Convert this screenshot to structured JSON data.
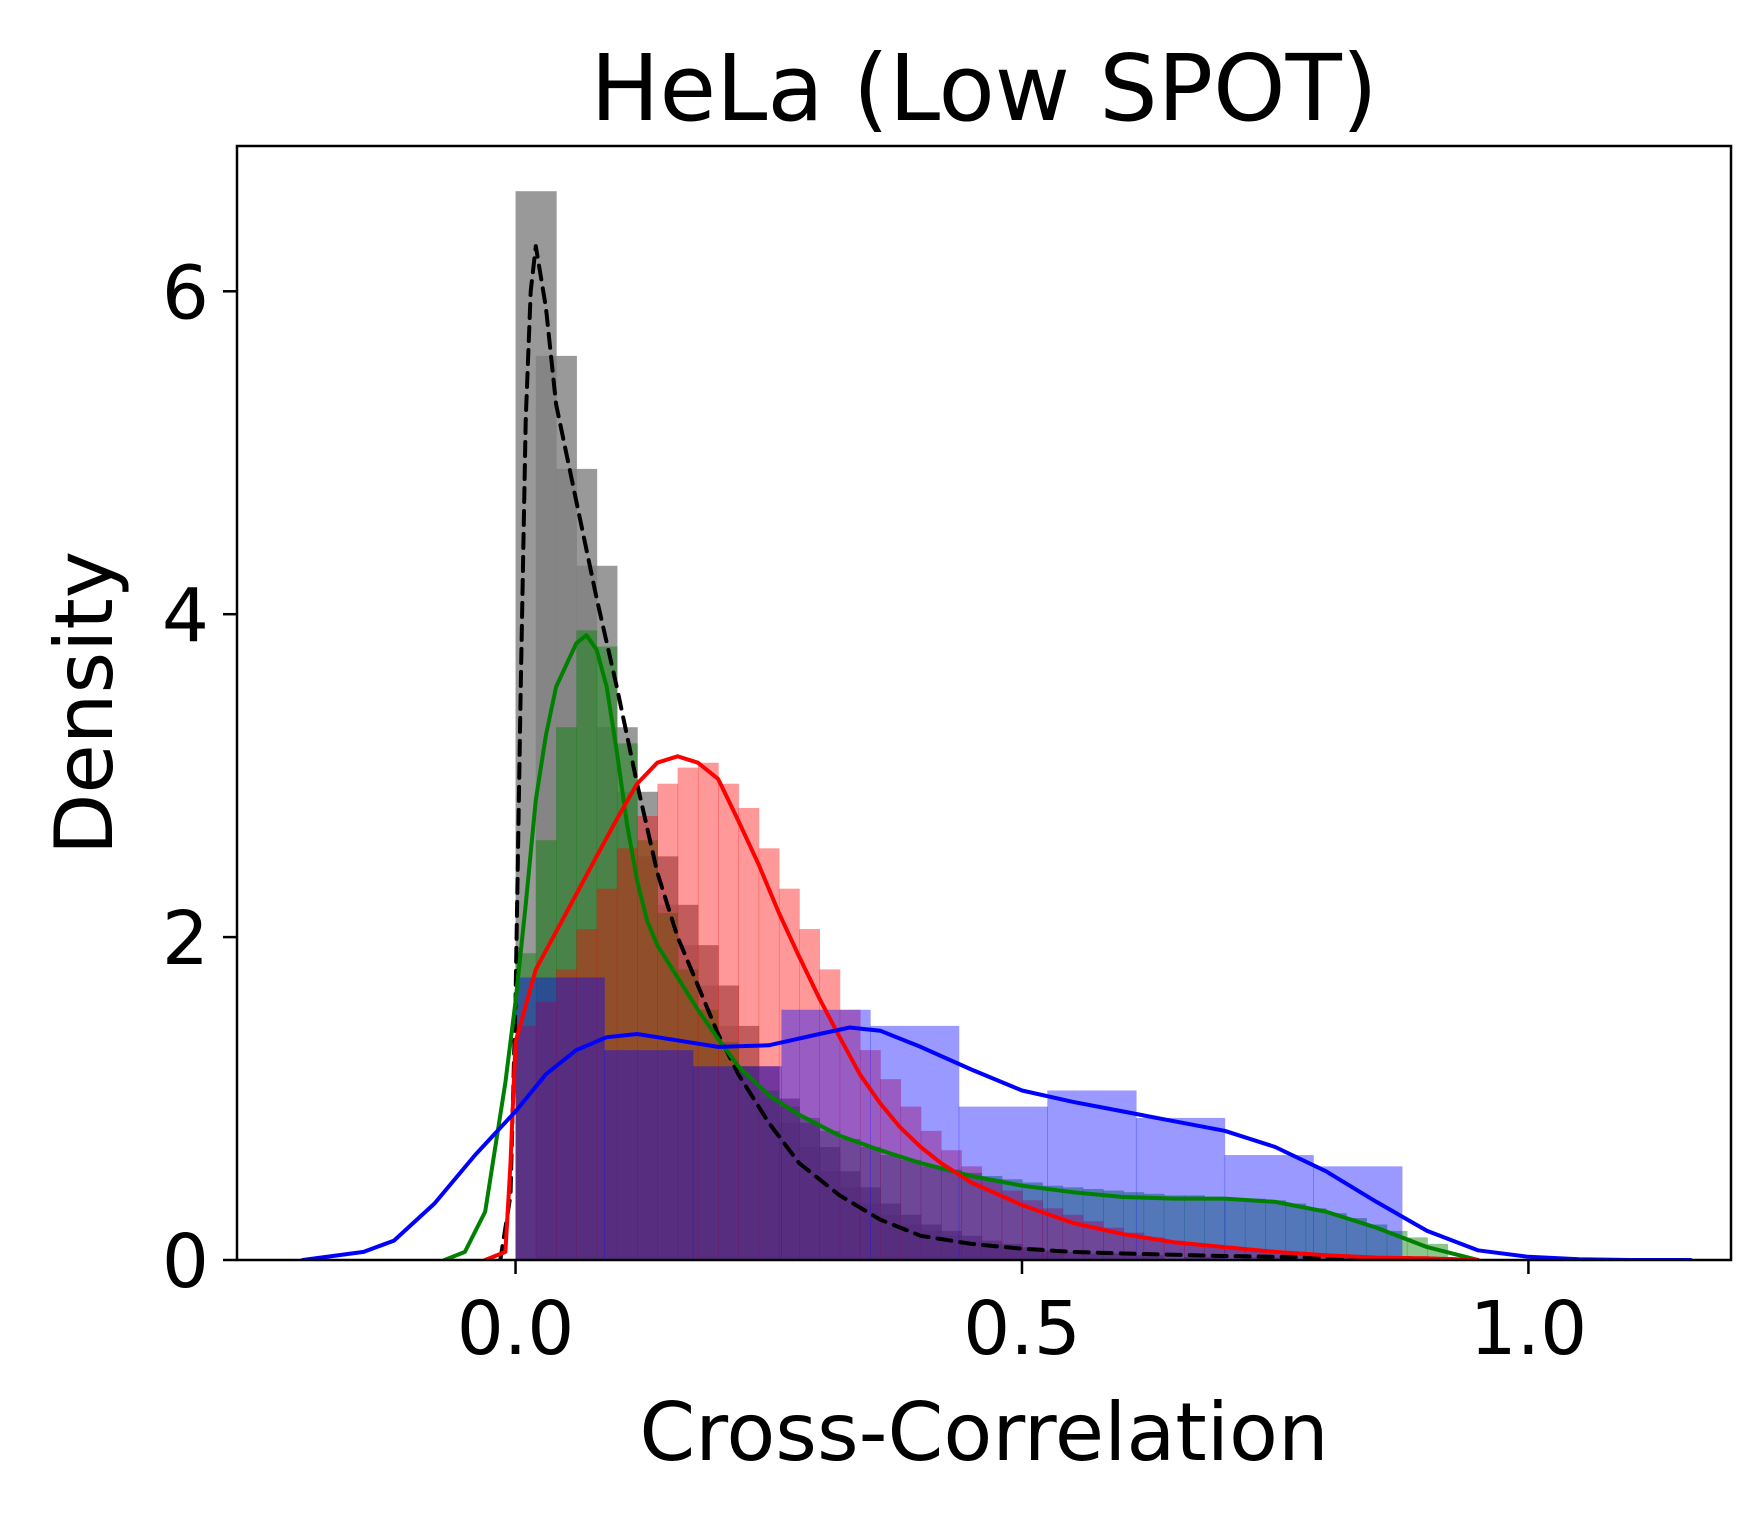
{
  "chart_data": {
    "type": "area",
    "title": "HeLa (Low SPOT)",
    "xlabel": "Cross-Correlation",
    "ylabel": "Density",
    "xlim": [
      -0.275,
      1.2
    ],
    "ylim": [
      0,
      6.9
    ],
    "xticks": [
      0.0,
      0.5,
      1.0
    ],
    "xtick_labels": [
      "0.0",
      "0.5",
      "1.0"
    ],
    "yticks": [
      0,
      2,
      4,
      6
    ],
    "ytick_labels": [
      "0",
      "2",
      "4",
      "6"
    ],
    "grid": false,
    "legend": "none",
    "colors": {
      "gray_hist": "#808080",
      "green": "#008000",
      "red": "#ff0000",
      "blue": "#0000ff",
      "black": "#000000"
    },
    "histograms": [
      {
        "color": "#808080",
        "opacity": 0.8,
        "bin_width": 0.04,
        "bins": [
          [
            0.0,
            6.62
          ],
          [
            0.02,
            5.6
          ],
          [
            0.04,
            4.9
          ],
          [
            0.06,
            4.3
          ],
          [
            0.08,
            3.3
          ],
          [
            0.1,
            2.9
          ],
          [
            0.12,
            2.5
          ],
          [
            0.14,
            2.2
          ],
          [
            0.16,
            1.95
          ],
          [
            0.18,
            1.7
          ],
          [
            0.2,
            1.45
          ],
          [
            0.22,
            1.2
          ],
          [
            0.24,
            1.0
          ],
          [
            0.26,
            0.85
          ],
          [
            0.28,
            0.7
          ],
          [
            0.3,
            0.55
          ],
          [
            0.32,
            0.45
          ],
          [
            0.34,
            0.35
          ],
          [
            0.36,
            0.28
          ],
          [
            0.38,
            0.22
          ],
          [
            0.4,
            0.18
          ],
          [
            0.42,
            0.15
          ],
          [
            0.44,
            0.12
          ],
          [
            0.46,
            0.1
          ],
          [
            0.48,
            0.08
          ],
          [
            0.5,
            0.06
          ],
          [
            0.52,
            0.05
          ],
          [
            0.56,
            0.04
          ],
          [
            0.6,
            0.03
          ],
          [
            0.66,
            0.02
          ],
          [
            0.72,
            0.015
          ],
          [
            0.8,
            0.01
          ]
        ]
      },
      {
        "color": "#008000",
        "opacity": 0.45,
        "bin_width": 0.02,
        "bins": [
          [
            0.0,
            1.9
          ],
          [
            0.02,
            2.6
          ],
          [
            0.04,
            3.3
          ],
          [
            0.06,
            3.9
          ],
          [
            0.08,
            3.8
          ],
          [
            0.1,
            3.2
          ],
          [
            0.12,
            2.6
          ],
          [
            0.14,
            2.15
          ],
          [
            0.16,
            1.8
          ],
          [
            0.18,
            1.55
          ],
          [
            0.2,
            1.35
          ],
          [
            0.22,
            1.2
          ],
          [
            0.24,
            1.05
          ],
          [
            0.26,
            0.95
          ],
          [
            0.28,
            0.88
          ],
          [
            0.3,
            0.8
          ],
          [
            0.32,
            0.75
          ],
          [
            0.34,
            0.7
          ],
          [
            0.36,
            0.65
          ],
          [
            0.38,
            0.62
          ],
          [
            0.4,
            0.58
          ],
          [
            0.42,
            0.56
          ],
          [
            0.44,
            0.54
          ],
          [
            0.46,
            0.52
          ],
          [
            0.48,
            0.5
          ],
          [
            0.5,
            0.48
          ],
          [
            0.52,
            0.46
          ],
          [
            0.54,
            0.45
          ],
          [
            0.56,
            0.44
          ],
          [
            0.58,
            0.43
          ],
          [
            0.6,
            0.42
          ],
          [
            0.62,
            0.41
          ],
          [
            0.64,
            0.4
          ],
          [
            0.66,
            0.4
          ],
          [
            0.68,
            0.39
          ],
          [
            0.7,
            0.38
          ],
          [
            0.72,
            0.38
          ],
          [
            0.74,
            0.37
          ],
          [
            0.76,
            0.35
          ],
          [
            0.78,
            0.32
          ],
          [
            0.8,
            0.29
          ],
          [
            0.82,
            0.26
          ],
          [
            0.84,
            0.22
          ],
          [
            0.86,
            0.18
          ],
          [
            0.88,
            0.14
          ],
          [
            0.9,
            0.1
          ]
        ]
      },
      {
        "color": "#ff0000",
        "opacity": 0.4,
        "bin_width": 0.02,
        "bins": [
          [
            0.0,
            1.45
          ],
          [
            0.02,
            1.6
          ],
          [
            0.04,
            1.8
          ],
          [
            0.06,
            2.05
          ],
          [
            0.08,
            2.3
          ],
          [
            0.1,
            2.55
          ],
          [
            0.12,
            2.75
          ],
          [
            0.14,
            2.95
          ],
          [
            0.16,
            3.05
          ],
          [
            0.18,
            3.08
          ],
          [
            0.2,
            2.95
          ],
          [
            0.22,
            2.8
          ],
          [
            0.24,
            2.55
          ],
          [
            0.26,
            2.3
          ],
          [
            0.28,
            2.05
          ],
          [
            0.3,
            1.8
          ],
          [
            0.32,
            1.55
          ],
          [
            0.34,
            1.3
          ],
          [
            0.36,
            1.12
          ],
          [
            0.38,
            0.95
          ],
          [
            0.4,
            0.8
          ],
          [
            0.42,
            0.68
          ],
          [
            0.44,
            0.58
          ],
          [
            0.46,
            0.5
          ],
          [
            0.48,
            0.43
          ],
          [
            0.5,
            0.37
          ],
          [
            0.52,
            0.32
          ],
          [
            0.54,
            0.28
          ],
          [
            0.56,
            0.24
          ],
          [
            0.58,
            0.2
          ],
          [
            0.6,
            0.17
          ],
          [
            0.62,
            0.14
          ],
          [
            0.64,
            0.12
          ],
          [
            0.66,
            0.1
          ],
          [
            0.68,
            0.08
          ],
          [
            0.7,
            0.07
          ],
          [
            0.72,
            0.06
          ],
          [
            0.74,
            0.05
          ],
          [
            0.76,
            0.04
          ],
          [
            0.78,
            0.03
          ],
          [
            0.8,
            0.025
          ],
          [
            0.84,
            0.02
          ],
          [
            0.88,
            0.015
          ]
        ]
      },
      {
        "color": "#0000ff",
        "opacity": 0.4,
        "bin_width": 0.0875,
        "bins": [
          [
            0.0,
            1.75
          ],
          [
            0.0875,
            1.3
          ],
          [
            0.175,
            1.2
          ],
          [
            0.2625,
            1.55
          ],
          [
            0.35,
            1.45
          ],
          [
            0.4375,
            0.95
          ],
          [
            0.525,
            1.05
          ],
          [
            0.6125,
            0.88
          ],
          [
            0.7,
            0.65
          ],
          [
            0.7875,
            0.58
          ]
        ]
      }
    ],
    "series": [
      {
        "color": "#000000",
        "dashed": true,
        "x": [
          -0.015,
          -0.005,
          0.0,
          0.005,
          0.01,
          0.015,
          0.02,
          0.03,
          0.04,
          0.06,
          0.08,
          0.1,
          0.12,
          0.14,
          0.16,
          0.18,
          0.2,
          0.22,
          0.25,
          0.28,
          0.32,
          0.36,
          0.4,
          0.45,
          0.5,
          0.55,
          0.6,
          0.7,
          0.8,
          0.9,
          0.95
        ],
        "y": [
          0.0,
          0.4,
          1.6,
          3.5,
          5.2,
          6.0,
          6.28,
          5.9,
          5.3,
          4.7,
          4.1,
          3.55,
          2.95,
          2.4,
          2.0,
          1.7,
          1.4,
          1.15,
          0.85,
          0.6,
          0.4,
          0.25,
          0.15,
          0.1,
          0.07,
          0.05,
          0.04,
          0.025,
          0.015,
          0.01,
          0.0
        ]
      },
      {
        "color": "#008000",
        "dashed": false,
        "x": [
          -0.07,
          -0.05,
          -0.03,
          -0.02,
          -0.01,
          0.0,
          0.01,
          0.02,
          0.03,
          0.04,
          0.06,
          0.07,
          0.08,
          0.09,
          0.1,
          0.11,
          0.12,
          0.13,
          0.14,
          0.16,
          0.18,
          0.2,
          0.22,
          0.25,
          0.28,
          0.32,
          0.36,
          0.4,
          0.45,
          0.5,
          0.55,
          0.6,
          0.65,
          0.7,
          0.75,
          0.8,
          0.85,
          0.9,
          0.95
        ],
        "y": [
          0.0,
          0.05,
          0.3,
          0.7,
          1.1,
          1.6,
          2.2,
          2.85,
          3.25,
          3.55,
          3.82,
          3.87,
          3.78,
          3.55,
          3.15,
          2.7,
          2.35,
          2.1,
          1.95,
          1.75,
          1.55,
          1.37,
          1.2,
          1.02,
          0.9,
          0.77,
          0.68,
          0.6,
          0.52,
          0.46,
          0.42,
          0.39,
          0.38,
          0.38,
          0.36,
          0.3,
          0.2,
          0.08,
          0.0
        ]
      },
      {
        "color": "#ff0000",
        "dashed": false,
        "x": [
          -0.03,
          -0.01,
          -0.005,
          0.0,
          0.02,
          0.05,
          0.08,
          0.1,
          0.12,
          0.14,
          0.16,
          0.18,
          0.2,
          0.22,
          0.24,
          0.26,
          0.28,
          0.3,
          0.32,
          0.34,
          0.36,
          0.38,
          0.4,
          0.42,
          0.45,
          0.5,
          0.55,
          0.6,
          0.65,
          0.7,
          0.75,
          0.8,
          0.85,
          0.9,
          0.95
        ],
        "y": [
          0.0,
          0.05,
          0.6,
          1.35,
          1.8,
          2.15,
          2.5,
          2.73,
          2.95,
          3.08,
          3.12,
          3.08,
          2.98,
          2.72,
          2.45,
          2.15,
          1.88,
          1.62,
          1.38,
          1.15,
          0.97,
          0.82,
          0.7,
          0.6,
          0.48,
          0.34,
          0.23,
          0.16,
          0.11,
          0.08,
          0.05,
          0.03,
          0.015,
          0.01,
          0.0
        ]
      },
      {
        "color": "#0000ff",
        "dashed": false,
        "x": [
          -0.21,
          -0.15,
          -0.12,
          -0.08,
          -0.04,
          0.0,
          0.03,
          0.06,
          0.09,
          0.12,
          0.15,
          0.2,
          0.25,
          0.3,
          0.33,
          0.36,
          0.4,
          0.45,
          0.5,
          0.55,
          0.6,
          0.65,
          0.7,
          0.75,
          0.8,
          0.85,
          0.9,
          0.95,
          1.0,
          1.05,
          1.1,
          1.16
        ],
        "y": [
          0.0,
          0.05,
          0.12,
          0.35,
          0.65,
          0.92,
          1.15,
          1.3,
          1.38,
          1.4,
          1.37,
          1.32,
          1.33,
          1.4,
          1.44,
          1.42,
          1.32,
          1.18,
          1.05,
          0.98,
          0.92,
          0.86,
          0.8,
          0.7,
          0.55,
          0.36,
          0.18,
          0.06,
          0.02,
          0.005,
          0.0,
          0.0
        ]
      }
    ]
  }
}
